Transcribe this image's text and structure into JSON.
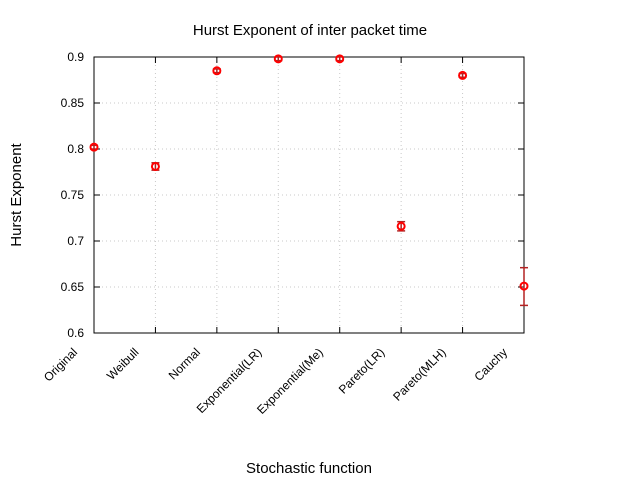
{
  "chart_data": {
    "type": "scatter",
    "title": "Hurst Exponent of inter packet time",
    "xlabel": "Stochastic function",
    "ylabel": "Hurst Exponent",
    "categories": [
      "Original",
      "Weibull",
      "Normal",
      "Exponential(LR)",
      "Exponential(Me)",
      "Pareto(LR)",
      "Pareto(MLH)",
      "Cauchy"
    ],
    "series": [
      {
        "values": [
          0.802,
          0.781,
          0.885,
          0.898,
          0.898,
          0.716,
          0.88,
          0.651
        ],
        "error_low": [
          0.8,
          0.777,
          0.883,
          0.896,
          0.896,
          0.711,
          0.878,
          0.63
        ],
        "error_high": [
          0.804,
          0.785,
          0.887,
          0.9,
          0.9,
          0.721,
          0.882,
          0.671
        ]
      }
    ],
    "ylim": [
      0.6,
      0.9
    ],
    "yticks": [
      "0.6",
      "0.65",
      "0.7",
      "0.75",
      "0.8",
      "0.85",
      "0.9"
    ],
    "grid": true,
    "marker_color": "#ff0000",
    "errorbar_color": "#b22222"
  }
}
